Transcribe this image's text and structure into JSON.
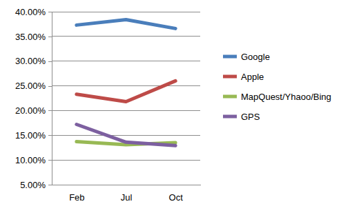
{
  "chart_data": {
    "type": "line",
    "categories": [
      "Feb",
      "Jul",
      "Oct"
    ],
    "series": [
      {
        "name": "Google",
        "color": "#4a7ebb",
        "values": [
          37.3,
          38.4,
          36.6
        ]
      },
      {
        "name": "Apple",
        "color": "#be4b48",
        "values": [
          23.3,
          21.8,
          26.0
        ]
      },
      {
        "name": "MapQuest/Yhaoo/Bing",
        "color": "#98b954",
        "values": [
          13.7,
          13.1,
          13.5
        ]
      },
      {
        "name": "GPS",
        "color": "#7d60a0",
        "values": [
          17.2,
          13.6,
          12.9
        ]
      }
    ],
    "ylim": [
      5,
      40
    ],
    "yticks": [
      {
        "value": 5,
        "label": "5.00%"
      },
      {
        "value": 10,
        "label": "10.00%"
      },
      {
        "value": 15,
        "label": "15.00%"
      },
      {
        "value": 20,
        "label": "20.00%"
      },
      {
        "value": 25,
        "label": "25.00%"
      },
      {
        "value": 30,
        "label": "30.00%"
      },
      {
        "value": 35,
        "label": "35.00%"
      },
      {
        "value": 40,
        "label": "40.00%"
      }
    ],
    "grid": true,
    "legend": "right"
  }
}
